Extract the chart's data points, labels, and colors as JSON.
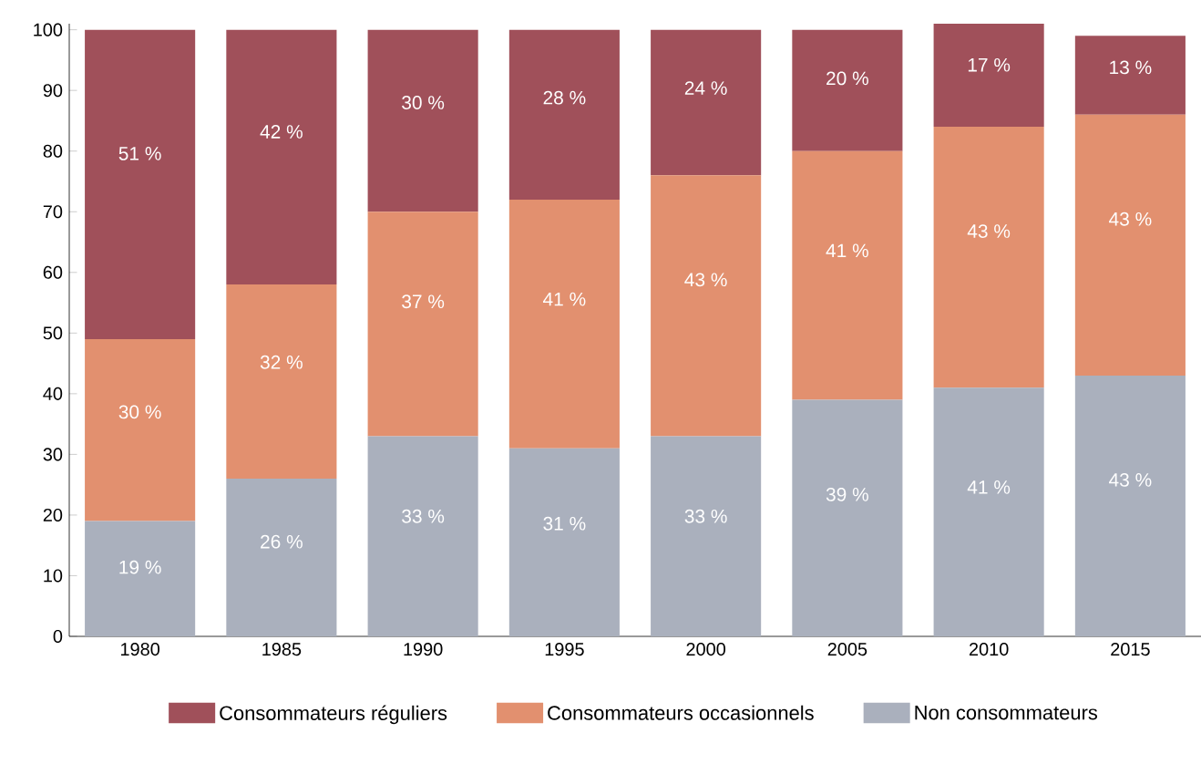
{
  "chart_data": {
    "type": "bar",
    "stacked": true,
    "categories": [
      "1980",
      "1985",
      "1990",
      "1995",
      "2000",
      "2005",
      "2010",
      "2015"
    ],
    "series": [
      {
        "name": "Non consommateurs",
        "color": "#aab0bd",
        "values": [
          19,
          26,
          33,
          31,
          33,
          39,
          41,
          43
        ],
        "value_labels": [
          "19 %",
          "26 %",
          "33 %",
          "31 %",
          "33 %",
          "39 %",
          "41 %",
          "43 %"
        ]
      },
      {
        "name": "Consommateurs occasionnels",
        "color": "#e2906f",
        "values": [
          30,
          32,
          37,
          41,
          43,
          41,
          43,
          43
        ],
        "value_labels": [
          "30 %",
          "32 %",
          "37 %",
          "41 %",
          "43 %",
          "41 %",
          "43 %",
          "43 %"
        ]
      },
      {
        "name": "Consommateurs réguliers",
        "color": "#a0505a",
        "values": [
          51,
          42,
          30,
          28,
          24,
          20,
          17,
          13
        ],
        "value_labels": [
          "51 %",
          "42 %",
          "30 %",
          "28 %",
          "24 %",
          "20 %",
          "17 %",
          "13 %"
        ]
      }
    ],
    "ylim": [
      0,
      101
    ],
    "yticks": [
      0,
      10,
      20,
      30,
      40,
      50,
      60,
      70,
      80,
      90,
      100
    ],
    "grid": false,
    "legend": "bottom"
  }
}
